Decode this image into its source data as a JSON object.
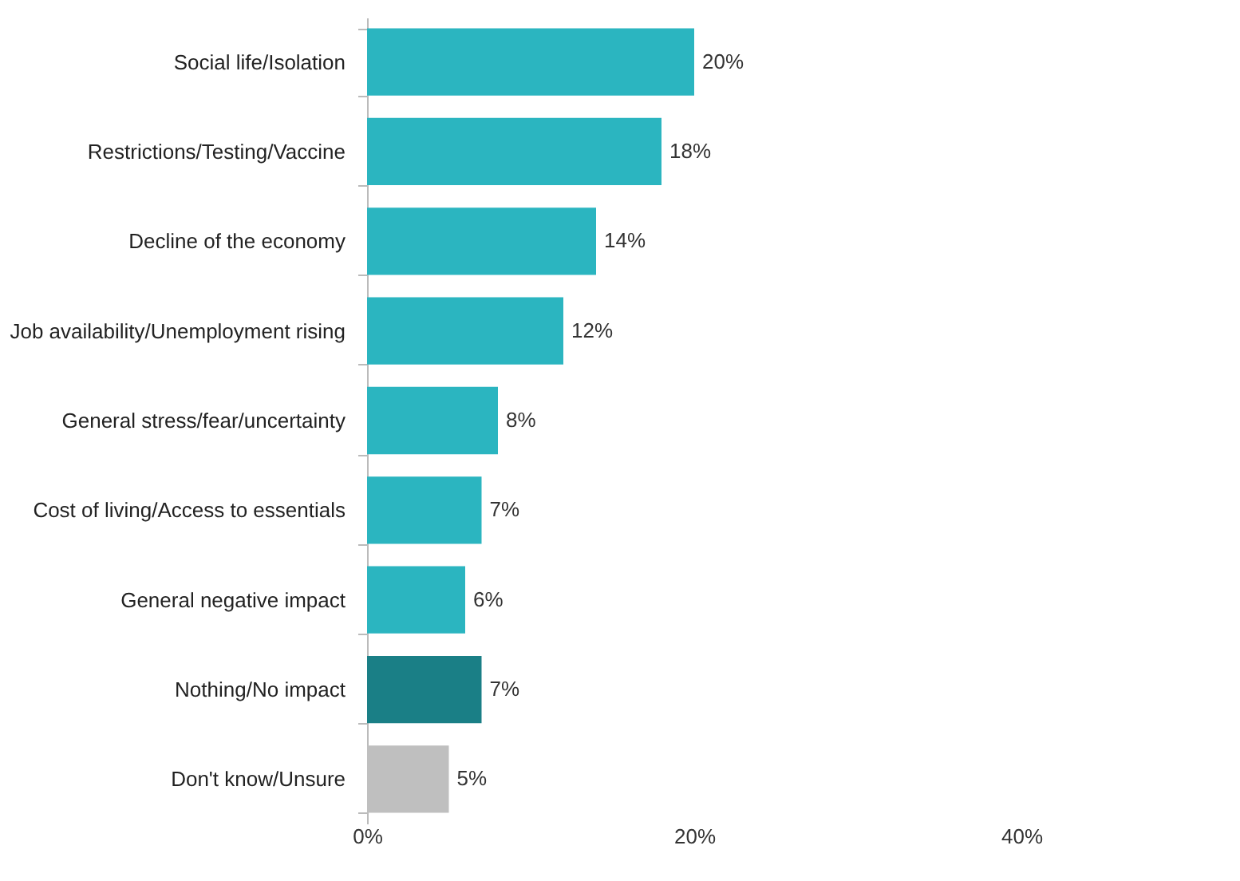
{
  "chart_data": {
    "type": "bar",
    "orientation": "horizontal",
    "categories": [
      "Social life/Isolation",
      "Restrictions/Testing/Vaccine",
      "Decline of the economy",
      "Job availability/Unemployment rising",
      "General stress/fear/uncertainty",
      "Cost of living/Access to essentials",
      "General negative impact",
      "Nothing/No impact",
      "Don't know/Unsure"
    ],
    "values": [
      20,
      18,
      14,
      12,
      8,
      7,
      6,
      7,
      5
    ],
    "colors": [
      "#2bb5c0",
      "#2bb5c0",
      "#2bb5c0",
      "#2bb5c0",
      "#2bb5c0",
      "#2bb5c0",
      "#2bb5c0",
      "#1a7f86",
      "#bfbfbf"
    ],
    "value_labels": [
      "20%",
      "18%",
      "14%",
      "12%",
      "8%",
      "7%",
      "6%",
      "7%",
      "5%"
    ],
    "xlim": [
      0,
      40
    ],
    "xticks": [
      {
        "value": 0,
        "label": "0%"
      },
      {
        "value": 20,
        "label": "20%"
      },
      {
        "value": 40,
        "label": "40%"
      }
    ],
    "grid": false
  }
}
